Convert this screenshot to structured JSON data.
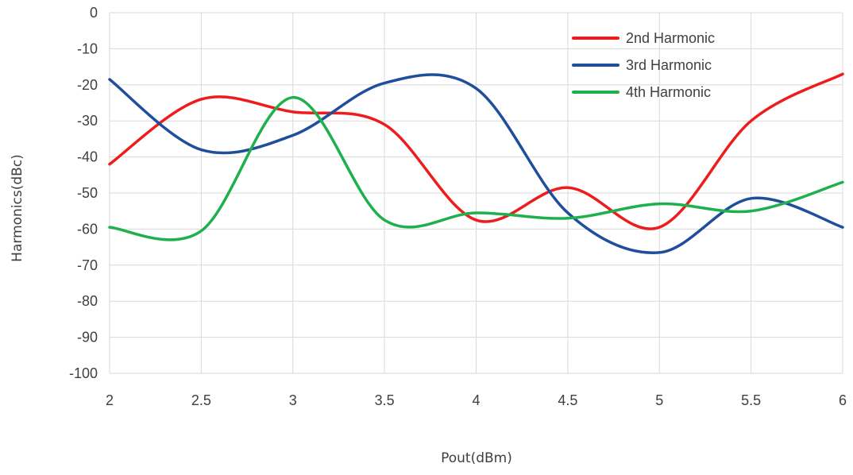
{
  "chart_data": {
    "type": "line",
    "xlabel": "Pout(dBm)",
    "ylabel": "Harmonics(dBc)",
    "xlim": [
      2,
      6
    ],
    "ylim": [
      -100,
      0
    ],
    "x_ticks": [
      2,
      2.5,
      3,
      3.5,
      4,
      4.5,
      5,
      5.5,
      6
    ],
    "x_tick_labels": [
      "2",
      "2.5",
      "3",
      "3.5",
      "4",
      "4.5",
      "5",
      "5.5",
      "6"
    ],
    "y_ticks": [
      0,
      -10,
      -20,
      -30,
      -40,
      -50,
      -60,
      -70,
      -80,
      -90,
      -100
    ],
    "y_tick_labels": [
      "0",
      "-10",
      "-20",
      "-30",
      "-40",
      "-50",
      "-60",
      "-70",
      "-80",
      "-90",
      "-100"
    ],
    "grid": true,
    "smooth": true,
    "legend_position": "top-right",
    "series": [
      {
        "name": "2nd Harmonic",
        "color": "#ee1c1c",
        "x": [
          2,
          2.5,
          3,
          3.5,
          4,
          4.5,
          5,
          5.5,
          6
        ],
        "y": [
          -42,
          -24,
          -27.5,
          -31,
          -57.5,
          -48.5,
          -59.5,
          -30,
          -17
        ]
      },
      {
        "name": "3rd Harmonic",
        "color": "#1f4e9c",
        "x": [
          2,
          2.5,
          3,
          3.5,
          4,
          4.5,
          5,
          5.5,
          6
        ],
        "y": [
          -18.5,
          -38,
          -34,
          -19.5,
          -21,
          -55.5,
          -66.5,
          -51.5,
          -59.5
        ]
      },
      {
        "name": "4th Harmonic",
        "color": "#1fb04e",
        "x": [
          2,
          2.5,
          3,
          3.5,
          4,
          4.5,
          5,
          5.5,
          6
        ],
        "y": [
          -59.5,
          -60.5,
          -23.5,
          -57.5,
          -55.5,
          -57,
          -53,
          -55,
          -47
        ]
      }
    ]
  }
}
